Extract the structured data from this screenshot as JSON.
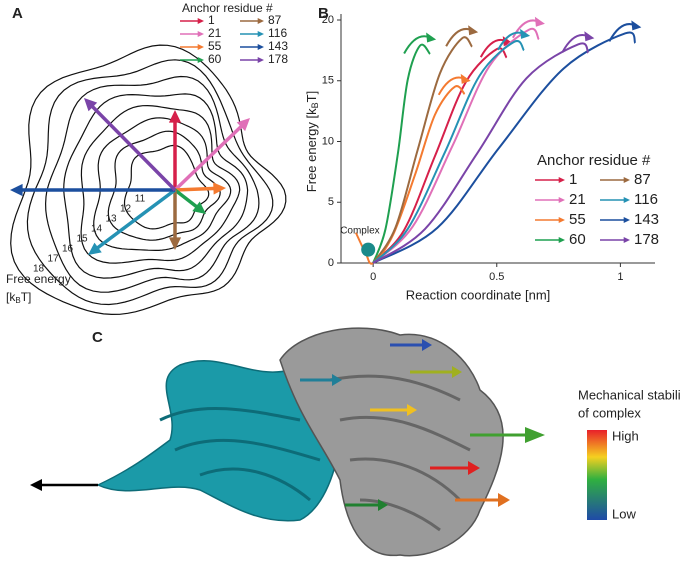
{
  "panel_labels": [
    "A",
    "B",
    "C"
  ],
  "chart_data": [
    {
      "type": "vector-diagram",
      "legend_title": "Anchor residue #",
      "axis_label": "Free energy",
      "axis_unit_parts": [
        "[k",
        "B",
        "T]"
      ],
      "levels": [
        11,
        12,
        13,
        14,
        15,
        16,
        17,
        18
      ],
      "series": [
        {
          "name": "1",
          "color": "#d6204a"
        },
        {
          "name": "21",
          "color": "#e070b8"
        },
        {
          "name": "55",
          "color": "#f47a30"
        },
        {
          "name": "60",
          "color": "#1fa050"
        },
        {
          "name": "87",
          "color": "#9c6a40"
        },
        {
          "name": "116",
          "color": "#2592b4"
        },
        {
          "name": "143",
          "color": "#1c4f9e"
        },
        {
          "name": "178",
          "color": "#7a44a8"
        }
      ]
    },
    {
      "type": "line",
      "legend_title": "Anchor residue #",
      "xlabel": "Reaction coordinate [nm]",
      "ylabel_parts": [
        "Free energy [k",
        "B",
        "T]"
      ],
      "xlim": [
        -0.13,
        1.14
      ],
      "ylim": [
        0,
        20
      ],
      "xticks": [
        0,
        0.5,
        1
      ],
      "yticks": [
        0,
        5,
        10,
        15,
        20
      ],
      "annotation": {
        "text": "Complex",
        "x": -0.02,
        "y": 1.1,
        "color": "#1a8a8a"
      },
      "series": [
        {
          "name": "1",
          "color": "#d6204a",
          "x": [
            0,
            0.125,
            0.25,
            0.375,
            0.5,
            0.54
          ],
          "values": [
            0,
            2.7,
            8.8,
            14.9,
            17.6,
            16.9
          ]
        },
        {
          "name": "21",
          "color": "#e070b8",
          "x": [
            0,
            0.16,
            0.32,
            0.47,
            0.63,
            0.67
          ],
          "values": [
            0,
            3.0,
            9.6,
            16.2,
            19.2,
            18.4
          ]
        },
        {
          "name": "55",
          "color": "#f47a30",
          "x": [
            -0.07,
            -0.03,
            0,
            0.08,
            0.17,
            0.25,
            0.33,
            0.37
          ],
          "values": [
            2.5,
            0.8,
            0,
            2.3,
            7.3,
            12.2,
            14.5,
            13.9
          ]
        },
        {
          "name": "60",
          "color": "#1fa050",
          "x": [
            0,
            0.05,
            0.1,
            0.14,
            0.19,
            0.23
          ],
          "values": [
            0,
            2.8,
            9.0,
            15.1,
            17.9,
            17.2
          ]
        },
        {
          "name": "87",
          "color": "#9c6a40",
          "x": [
            0,
            0.09,
            0.18,
            0.27,
            0.36,
            0.4
          ],
          "values": [
            0,
            2.9,
            9.3,
            15.6,
            18.5,
            17.8
          ]
        },
        {
          "name": "116",
          "color": "#2592b4",
          "x": [
            0,
            0.14,
            0.29,
            0.43,
            0.57,
            0.61
          ],
          "values": [
            0,
            2.8,
            9.1,
            15.4,
            18.2,
            17.5
          ]
        },
        {
          "name": "143",
          "color": "#1c4f9e",
          "x": [
            0,
            0.26,
            0.51,
            0.77,
            1.02,
            1.06
          ],
          "values": [
            0,
            2.9,
            9.5,
            16.0,
            18.9,
            18.1
          ]
        },
        {
          "name": "178",
          "color": "#7a44a8",
          "x": [
            0,
            0.21,
            0.42,
            0.62,
            0.83,
            0.87
          ],
          "values": [
            0,
            2.8,
            9.0,
            15.2,
            18.0,
            17.3
          ]
        }
      ]
    }
  ],
  "panel_c": {
    "legend_title_lines": [
      "Mechanical stability",
      "of complex"
    ],
    "high": "High",
    "low": "Low"
  }
}
